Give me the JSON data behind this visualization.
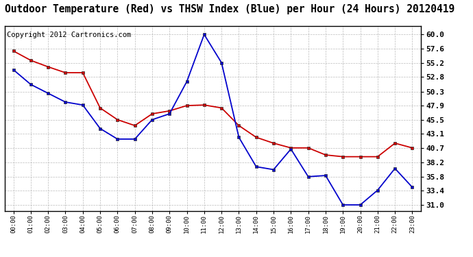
{
  "title": "Outdoor Temperature (Red) vs THSW Index (Blue) per Hour (24 Hours) 20120419",
  "copyright_text": "Copyright 2012 Cartronics.com",
  "hours": [
    "00:00",
    "01:00",
    "02:00",
    "03:00",
    "04:00",
    "05:00",
    "06:00",
    "07:00",
    "08:00",
    "09:00",
    "10:00",
    "11:00",
    "12:00",
    "13:00",
    "14:00",
    "15:00",
    "16:00",
    "17:00",
    "18:00",
    "19:00",
    "20:00",
    "21:00",
    "22:00",
    "23:00"
  ],
  "red_temp": [
    57.2,
    55.6,
    54.5,
    53.5,
    53.5,
    47.5,
    45.5,
    44.5,
    46.5,
    47.0,
    47.9,
    48.0,
    47.5,
    44.5,
    42.5,
    41.5,
    40.7,
    40.7,
    39.5,
    39.2,
    39.2,
    39.2,
    41.5,
    40.7
  ],
  "blue_thsw": [
    54.0,
    51.5,
    50.0,
    48.5,
    48.0,
    44.0,
    42.2,
    42.2,
    45.5,
    46.5,
    52.0,
    60.0,
    55.2,
    42.5,
    37.5,
    37.0,
    40.5,
    35.8,
    36.0,
    31.0,
    31.0,
    33.5,
    37.2,
    34.0
  ],
  "y_ticks": [
    31.0,
    33.4,
    35.8,
    38.2,
    40.7,
    43.1,
    45.5,
    47.9,
    50.3,
    52.8,
    55.2,
    57.6,
    60.0
  ],
  "ylim": [
    30.0,
    61.5
  ],
  "bg_color": "#ffffff",
  "plot_bg_color": "#ffffff",
  "grid_color": "#aaaaaa",
  "red_color": "#cc0000",
  "blue_color": "#0000cc",
  "title_fontsize": 10.5,
  "copyright_fontsize": 7.5
}
